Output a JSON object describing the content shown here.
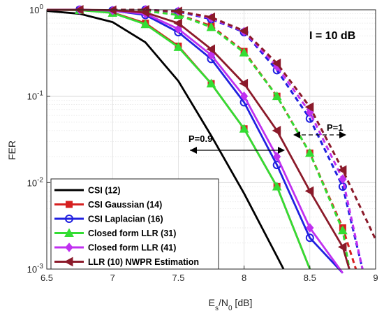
{
  "chart_data": {
    "type": "line",
    "title": "",
    "xlabel": "E",
    "xlabel_sub": "s",
    "xlabel_mid": "/N",
    "xlabel_sub2": "0",
    "xlabel_unit": " [dB]",
    "ylabel": "FER",
    "xlim": [
      6.5,
      9
    ],
    "ylim": [
      0.001,
      1
    ],
    "yscale": "log",
    "grid": true,
    "xticks": [
      "6.5",
      "7",
      "7.5",
      "8",
      "8.5",
      "9"
    ],
    "yticks": [
      {
        "base": "10",
        "exp": "0"
      },
      {
        "base": "10",
        "exp": "-1"
      },
      {
        "base": "10",
        "exp": "-2"
      },
      {
        "base": "10",
        "exp": "-3"
      }
    ],
    "legend_position": "bottom-left",
    "annotations": {
      "interference": "I = 10 dB",
      "p09": "P=0.9",
      "p1": "P=1"
    },
    "colors": {
      "csi": "#000000",
      "gauss": "#d62020",
      "lap": "#2020e0",
      "cf31": "#33dd33",
      "cf41": "#c030f0",
      "llr10": "#8b1a2a"
    },
    "series": [
      {
        "name": "CSI (12)",
        "color_key": "csi",
        "marker": "none",
        "dashed": false,
        "x": [
          6.5,
          6.75,
          7.0,
          7.25,
          7.5,
          7.75,
          8.0,
          8.25,
          8.3
        ],
        "y": [
          0.97,
          0.9,
          0.72,
          0.42,
          0.15,
          0.035,
          0.0075,
          0.0014,
          0.001
        ]
      },
      {
        "name": "CSI Gaussian (14)",
        "color_key": "gauss",
        "marker": "square",
        "dashed": false,
        "x": [
          6.5,
          6.75,
          7.0,
          7.25,
          7.5,
          7.75,
          8.0,
          8.25,
          8.5
        ],
        "y": [
          1.0,
          0.99,
          0.93,
          0.7,
          0.38,
          0.14,
          0.042,
          0.009,
          0.001
        ]
      },
      {
        "name": "CSI Laplacian (16)",
        "color_key": "lap",
        "marker": "circle",
        "dashed": false,
        "x": [
          6.5,
          6.75,
          7.0,
          7.25,
          7.5,
          7.75,
          8.0,
          8.25,
          8.5,
          8.75
        ],
        "y": [
          1.0,
          1.0,
          0.98,
          0.87,
          0.55,
          0.27,
          0.085,
          0.016,
          0.0023,
          0.0009
        ]
      },
      {
        "name": "Closed form LLR (31)",
        "color_key": "cf31",
        "marker": "triangle",
        "dashed": false,
        "x": [
          6.5,
          6.75,
          7.0,
          7.25,
          7.5,
          7.75,
          8.0,
          8.25,
          8.5
        ],
        "y": [
          1.0,
          0.99,
          0.92,
          0.68,
          0.37,
          0.14,
          0.042,
          0.009,
          0.001
        ]
      },
      {
        "name": "Closed form LLR (41)",
        "color_key": "cf41",
        "marker": "diamond",
        "dashed": false,
        "x": [
          6.5,
          6.75,
          7.0,
          7.25,
          7.5,
          7.75,
          8.0,
          8.25,
          8.5,
          8.75
        ],
        "y": [
          1.0,
          1.0,
          0.98,
          0.9,
          0.6,
          0.3,
          0.1,
          0.02,
          0.003,
          0.0009
        ]
      },
      {
        "name": "LLR (10) NWPR Estimation",
        "color_key": "llr10",
        "marker": "triangle-left",
        "dashed": false,
        "x": [
          6.5,
          6.75,
          7.0,
          7.25,
          7.5,
          7.75,
          8.0,
          8.25,
          8.5,
          8.75,
          8.8
        ],
        "y": [
          1.0,
          1.0,
          0.99,
          0.93,
          0.7,
          0.35,
          0.14,
          0.04,
          0.008,
          0.0018,
          0.001
        ]
      },
      {
        "name": "",
        "color_key": "gauss",
        "marker": "square",
        "dashed": true,
        "x": [
          7.0,
          7.25,
          7.5,
          7.75,
          8.0,
          8.25,
          8.5,
          8.75,
          8.85
        ],
        "y": [
          1.0,
          0.97,
          0.88,
          0.65,
          0.33,
          0.1,
          0.022,
          0.003,
          0.001
        ]
      },
      {
        "name": "",
        "color_key": "lap",
        "marker": "circle",
        "dashed": true,
        "x": [
          7.0,
          7.25,
          7.5,
          7.75,
          8.0,
          8.25,
          8.5,
          8.75,
          8.9
        ],
        "y": [
          1.0,
          1.0,
          0.95,
          0.78,
          0.55,
          0.2,
          0.055,
          0.009,
          0.001
        ]
      },
      {
        "name": "",
        "color_key": "cf31",
        "marker": "triangle",
        "dashed": true,
        "x": [
          7.0,
          7.25,
          7.5,
          7.75,
          8.0,
          8.25,
          8.5,
          8.75,
          8.8
        ],
        "y": [
          1.0,
          0.97,
          0.87,
          0.63,
          0.32,
          0.1,
          0.022,
          0.0028,
          0.001
        ]
      },
      {
        "name": "",
        "color_key": "cf41",
        "marker": "diamond",
        "dashed": true,
        "x": [
          7.0,
          7.25,
          7.5,
          7.75,
          8.0,
          8.25,
          8.5,
          8.75,
          8.9
        ],
        "y": [
          1.0,
          1.0,
          0.96,
          0.8,
          0.56,
          0.22,
          0.065,
          0.011,
          0.001
        ]
      },
      {
        "name": "",
        "color_key": "llr10",
        "marker": "triangle-left",
        "dashed": true,
        "x": [
          7.0,
          7.25,
          7.5,
          7.75,
          8.0,
          8.25,
          8.5,
          8.75,
          9.0
        ],
        "y": [
          1.0,
          1.0,
          0.96,
          0.82,
          0.57,
          0.24,
          0.075,
          0.014,
          0.0022
        ]
      }
    ]
  }
}
